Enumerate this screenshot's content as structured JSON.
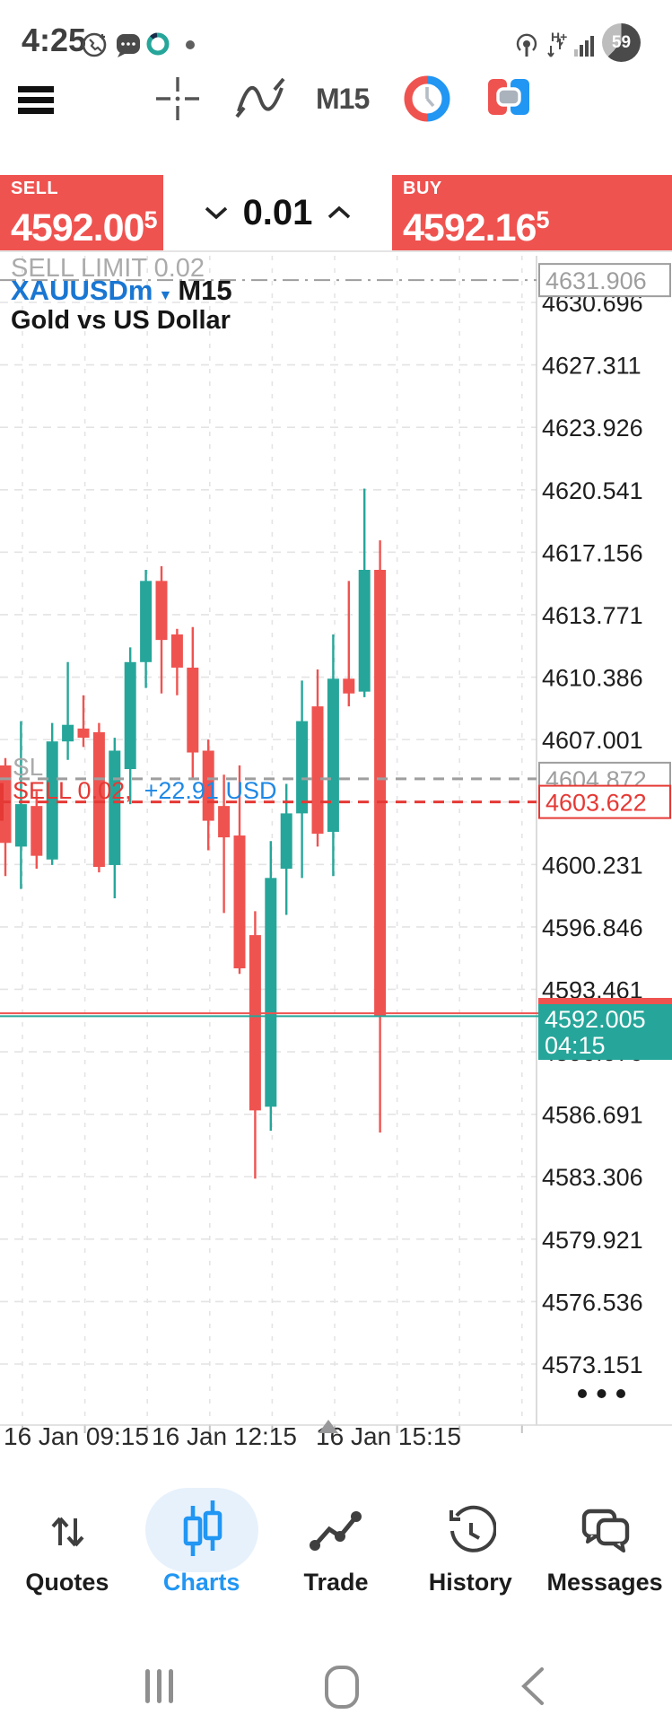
{
  "status_bar": {
    "time": "4:25",
    "battery_percent": "59",
    "data_mode": "H+"
  },
  "toolbar": {
    "timeframe": "M15"
  },
  "trade_panel": {
    "sell": {
      "label": "SELL",
      "price_main": "4592.00",
      "price_sup": "5"
    },
    "buy": {
      "label": "BUY",
      "price_main": "4592.16",
      "price_sup": "5"
    },
    "volume": "0.01"
  },
  "chart": {
    "symbol": "XAUUSDm",
    "timeframe": "M15",
    "description": "Gold vs US Dollar",
    "pending_order_label": "SELL LIMIT 0.02",
    "pending_order_price": "4631.906",
    "sl_label": "SL",
    "sl_price": "4604.872",
    "position_label": "SELL 0.02,",
    "position_profit": "+22.91 USD",
    "position_price": "4603.622",
    "bid_badge_price": "4592.005",
    "bid_badge_time": "04:15",
    "time_axis_labels": [
      "16 Jan 09:15",
      "16 Jan 12:15",
      "16 Jan 15:15"
    ],
    "price_axis_labels": [
      "4630.696",
      "4627.311",
      "4623.926",
      "4620.541",
      "4617.156",
      "4613.771",
      "4610.386",
      "4607.001",
      "4600.231",
      "4596.846",
      "4593.461",
      "4590.076",
      "4586.691",
      "4583.306",
      "4579.921",
      "4576.536",
      "4573.151"
    ]
  },
  "chart_data": {
    "type": "candlestick",
    "symbol": "XAUUSDm",
    "timeframe": "M15",
    "title": "Gold vs US Dollar",
    "bid": 4592.005,
    "ask": 4592.165,
    "levels": {
      "sell_limit": 4631.906,
      "stop_loss": 4604.872,
      "position_open": 4603.622
    },
    "axis_top_price": 4630.696,
    "axis_step": 3.385,
    "x_labels": [
      "16 Jan 09:15",
      "16 Jan 12:15",
      "16 Jan 15:15"
    ],
    "up_color": "#26a69a",
    "down_color": "#ef5350",
    "candles": [
      {
        "o": 4605.6,
        "h": 4606.0,
        "l": 4599.6,
        "c": 4601.4
      },
      {
        "o": 4601.2,
        "h": 4608.0,
        "l": 4598.9,
        "c": 4603.5
      },
      {
        "o": 4603.4,
        "h": 4604.2,
        "l": 4600.0,
        "c": 4600.7
      },
      {
        "o": 4600.5,
        "h": 4607.9,
        "l": 4600.2,
        "c": 4606.9
      },
      {
        "o": 4606.9,
        "h": 4611.2,
        "l": 4605.9,
        "c": 4607.8
      },
      {
        "o": 4607.6,
        "h": 4609.4,
        "l": 4606.6,
        "c": 4607.1
      },
      {
        "o": 4607.4,
        "h": 4607.9,
        "l": 4599.8,
        "c": 4600.1
      },
      {
        "o": 4600.2,
        "h": 4607.1,
        "l": 4598.4,
        "c": 4606.4
      },
      {
        "o": 4605.4,
        "h": 4612.0,
        "l": 4603.5,
        "c": 4611.2
      },
      {
        "o": 4611.2,
        "h": 4616.2,
        "l": 4609.8,
        "c": 4615.6
      },
      {
        "o": 4615.6,
        "h": 4616.4,
        "l": 4609.5,
        "c": 4612.4
      },
      {
        "o": 4612.7,
        "h": 4613.0,
        "l": 4609.4,
        "c": 4610.9
      },
      {
        "o": 4610.9,
        "h": 4613.1,
        "l": 4604.9,
        "c": 4606.3
      },
      {
        "o": 4606.4,
        "h": 4607.0,
        "l": 4601.0,
        "c": 4602.6
      },
      {
        "o": 4603.4,
        "h": 4605.1,
        "l": 4597.6,
        "c": 4601.7
      },
      {
        "o": 4601.8,
        "h": 4605.6,
        "l": 4594.3,
        "c": 4594.6
      },
      {
        "o": 4596.4,
        "h": 4597.7,
        "l": 4583.2,
        "c": 4586.9
      },
      {
        "o": 4587.1,
        "h": 4601.5,
        "l": 4585.8,
        "c": 4599.5
      },
      {
        "o": 4600.0,
        "h": 4604.6,
        "l": 4597.5,
        "c": 4603.0
      },
      {
        "o": 4603.0,
        "h": 4610.2,
        "l": 4599.5,
        "c": 4608.0
      },
      {
        "o": 4608.8,
        "h": 4610.8,
        "l": 4601.2,
        "c": 4601.9
      },
      {
        "o": 4602.0,
        "h": 4612.7,
        "l": 4599.6,
        "c": 4610.3
      },
      {
        "o": 4610.3,
        "h": 4615.6,
        "l": 4608.8,
        "c": 4609.5
      },
      {
        "o": 4609.6,
        "h": 4620.6,
        "l": 4609.3,
        "c": 4616.2
      },
      {
        "o": 4616.2,
        "h": 4617.8,
        "l": 4585.7,
        "c": 4592.0
      }
    ]
  },
  "bottom_nav": {
    "items": [
      {
        "label": "Quotes",
        "active": false
      },
      {
        "label": "Charts",
        "active": true
      },
      {
        "label": "Trade",
        "active": false
      },
      {
        "label": "History",
        "active": false
      },
      {
        "label": "Messages",
        "active": false
      }
    ]
  },
  "colors": {
    "up": "#26a69a",
    "down": "#ef5350",
    "accent_blue": "#2196f3",
    "symbol_blue": "#1976d2",
    "profit_blue": "#1e88e5",
    "gray_label": "#ababab"
  }
}
